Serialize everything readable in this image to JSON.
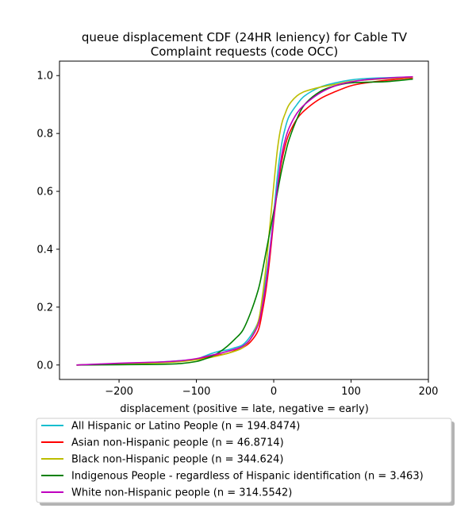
{
  "chart_data": {
    "type": "line",
    "title": [
      "queue displacement CDF (24HR leniency) for Cable TV",
      "Complaint  requests (code OCC)"
    ],
    "xlabel": "displacement (positive = late, negative = early)",
    "ylabel": "",
    "xlim": [
      -277,
      200
    ],
    "ylim": [
      -0.05,
      1.05
    ],
    "xticks": [
      -200,
      -100,
      0,
      100,
      200
    ],
    "xtick_labels": [
      "−200",
      "−100",
      "0",
      "100",
      "200"
    ],
    "yticks": [
      0.0,
      0.2,
      0.4,
      0.6,
      0.8,
      1.0
    ],
    "ytick_labels": [
      "0.0",
      "0.2",
      "0.4",
      "0.6",
      "0.8",
      "1.0"
    ],
    "grid": false,
    "legend_position": "below",
    "series": [
      {
        "name": "All Hispanic or Latino People (n = 194.8474)",
        "color": "#17becf",
        "x": [
          -255,
          -200,
          -150,
          -120,
          -100,
          -90,
          -80,
          -70,
          -60,
          -50,
          -40,
          -30,
          -20,
          -15,
          -10,
          -5,
          0,
          5,
          10,
          15,
          20,
          30,
          40,
          60,
          80,
          100,
          120,
          150,
          180
        ],
        "y": [
          0.0,
          0.005,
          0.01,
          0.015,
          0.02,
          0.03,
          0.04,
          0.048,
          0.052,
          0.06,
          0.07,
          0.1,
          0.15,
          0.22,
          0.3,
          0.4,
          0.52,
          0.66,
          0.76,
          0.82,
          0.86,
          0.9,
          0.93,
          0.96,
          0.975,
          0.985,
          0.99,
          0.993,
          0.995
        ]
      },
      {
        "name": "Asian non-Hispanic people (n = 46.8714)",
        "color": "#ff0000",
        "x": [
          -255,
          -200,
          -150,
          -120,
          -100,
          -90,
          -80,
          -70,
          -60,
          -50,
          -40,
          -30,
          -20,
          -15,
          -10,
          -5,
          0,
          5,
          10,
          15,
          20,
          30,
          40,
          60,
          80,
          100,
          120,
          150,
          180
        ],
        "y": [
          0.0,
          0.003,
          0.008,
          0.013,
          0.02,
          0.025,
          0.03,
          0.035,
          0.04,
          0.05,
          0.06,
          0.08,
          0.12,
          0.18,
          0.26,
          0.37,
          0.5,
          0.61,
          0.7,
          0.76,
          0.8,
          0.85,
          0.88,
          0.92,
          0.945,
          0.965,
          0.975,
          0.985,
          0.993
        ]
      },
      {
        "name": "Black non-Hispanic people (n = 344.624)",
        "color": "#bcbd00",
        "x": [
          -255,
          -200,
          -150,
          -120,
          -100,
          -90,
          -80,
          -70,
          -60,
          -50,
          -40,
          -30,
          -20,
          -15,
          -10,
          -5,
          0,
          5,
          10,
          15,
          20,
          30,
          40,
          60,
          80,
          100,
          120,
          150,
          180
        ],
        "y": [
          0.0,
          0.003,
          0.007,
          0.012,
          0.018,
          0.022,
          0.027,
          0.033,
          0.04,
          0.048,
          0.06,
          0.09,
          0.15,
          0.23,
          0.34,
          0.48,
          0.62,
          0.75,
          0.83,
          0.87,
          0.9,
          0.93,
          0.945,
          0.96,
          0.97,
          0.98,
          0.985,
          0.99,
          0.995
        ]
      },
      {
        "name": "Indigenous People - regardless of Hispanic identification (n = 3.463)",
        "color": "#008000",
        "x": [
          -255,
          -200,
          -150,
          -120,
          -100,
          -90,
          -80,
          -70,
          -60,
          -50,
          -40,
          -30,
          -20,
          -15,
          -10,
          -5,
          0,
          5,
          10,
          15,
          20,
          30,
          40,
          60,
          80,
          100,
          120,
          150,
          180
        ],
        "y": [
          0.0,
          0.001,
          0.002,
          0.005,
          0.012,
          0.02,
          0.03,
          0.045,
          0.065,
          0.09,
          0.12,
          0.18,
          0.26,
          0.32,
          0.39,
          0.46,
          0.53,
          0.6,
          0.67,
          0.73,
          0.78,
          0.85,
          0.9,
          0.945,
          0.965,
          0.975,
          0.977,
          0.98,
          0.988
        ]
      },
      {
        "name": "White non-Hispanic people (n = 314.5542)",
        "color": "#bf00bf",
        "x": [
          -255,
          -200,
          -150,
          -120,
          -100,
          -90,
          -80,
          -70,
          -60,
          -50,
          -40,
          -30,
          -20,
          -15,
          -10,
          -5,
          0,
          5,
          10,
          15,
          20,
          30,
          40,
          60,
          80,
          100,
          120,
          150,
          180
        ],
        "y": [
          0.0,
          0.006,
          0.01,
          0.015,
          0.022,
          0.028,
          0.034,
          0.04,
          0.047,
          0.055,
          0.065,
          0.09,
          0.14,
          0.2,
          0.28,
          0.39,
          0.51,
          0.62,
          0.72,
          0.78,
          0.82,
          0.87,
          0.9,
          0.94,
          0.965,
          0.978,
          0.986,
          0.992,
          0.996
        ]
      }
    ]
  }
}
